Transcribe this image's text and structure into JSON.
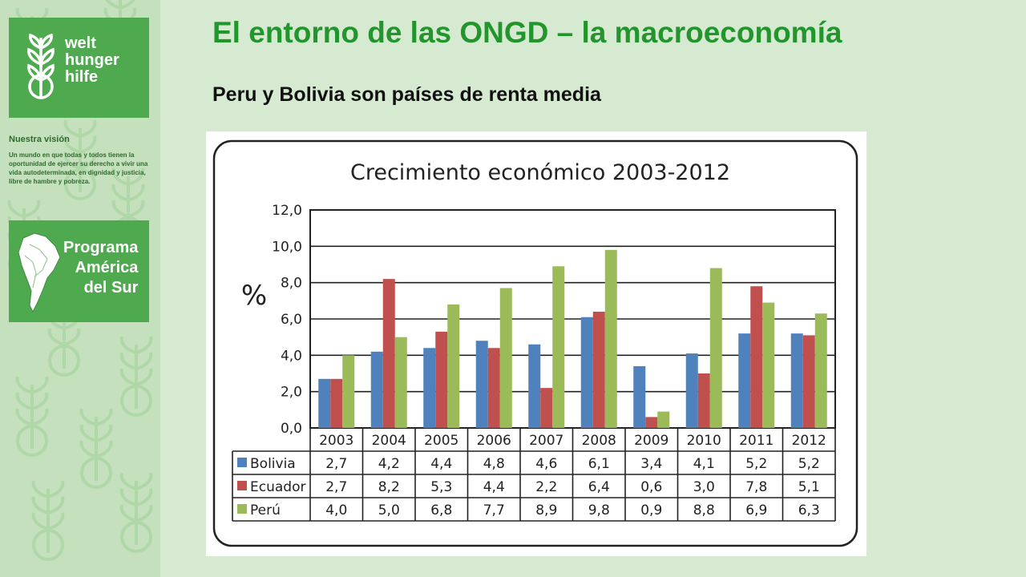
{
  "page": {
    "title": "El entorno de las ONGD –  la macroeconomía",
    "subtitle": "Peru y Bolivia son países de renta media"
  },
  "sidebar": {
    "logo_whh": {
      "lines": [
        "welt",
        "hunger",
        "hilfe"
      ],
      "icon": "wheat-globe-icon"
    },
    "vision_title": "Nuestra visión",
    "vision_text": "Un mundo en que todas y todos tienen la oportunidad de ejercer  su derecho a vivir una vida autodeterminada, en dignidad y justicia, libre de hambre y pobreza.",
    "logo_program": {
      "lines": [
        "Programa",
        "América",
        "del Sur"
      ],
      "icon": "south-america-map-icon"
    },
    "colors": {
      "background": "#c4e0bd",
      "logo_box": "#4faa4f",
      "pattern": "#a9d4a1"
    }
  },
  "chart_data": {
    "type": "bar",
    "title": "Crecimiento económico 2003-2012",
    "ylabel": "%",
    "ylim": [
      0,
      12
    ],
    "yticks": [
      "0,0",
      "2,0",
      "4,0",
      "6,0",
      "8,0",
      "10,0",
      "12,0"
    ],
    "grid": true,
    "legend": "table-below",
    "categories": [
      "2003",
      "2004",
      "2005",
      "2006",
      "2007",
      "2008",
      "2009",
      "2010",
      "2011",
      "2012"
    ],
    "series": [
      {
        "name": "Bolivia",
        "color": "#4f81bd",
        "values": [
          2.7,
          4.2,
          4.4,
          4.8,
          4.6,
          6.1,
          3.4,
          4.1,
          5.2,
          5.2
        ],
        "labels": [
          "2,7",
          "4,2",
          "4,4",
          "4,8",
          "4,6",
          "6,1",
          "3,4",
          "4,1",
          "5,2",
          "5,2"
        ]
      },
      {
        "name": "Ecuador",
        "color": "#c0504d",
        "values": [
          2.7,
          8.2,
          5.3,
          4.4,
          2.2,
          6.4,
          0.6,
          3.0,
          7.8,
          5.1
        ],
        "labels": [
          "2,7",
          "8,2",
          "5,3",
          "4,4",
          "2,2",
          "6,4",
          "0,6",
          "3,0",
          "7,8",
          "5,1"
        ]
      },
      {
        "name": "Perú",
        "color": "#9bbb59",
        "values": [
          4.0,
          5.0,
          6.8,
          7.7,
          8.9,
          9.8,
          0.9,
          8.8,
          6.9,
          6.3
        ],
        "labels": [
          "4,0",
          "5,0",
          "6,8",
          "7,7",
          "8,9",
          "9,8",
          "0,9",
          "8,8",
          "6,9",
          "6,3"
        ]
      }
    ]
  }
}
